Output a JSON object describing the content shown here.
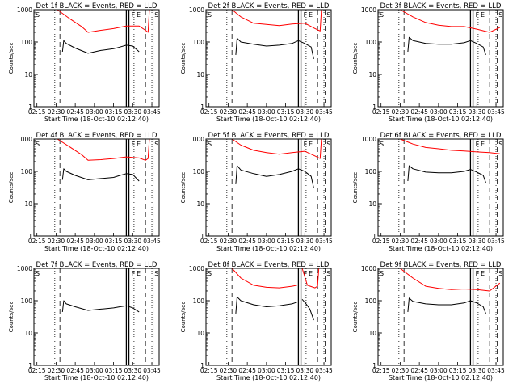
{
  "figure": {
    "xlabel": "Start Time (18-Oct-10 02:12:40)",
    "ylabel": "Counts/sec",
    "x_ticks": [
      "02:15",
      "02:30",
      "02:45",
      "03:00",
      "03:15",
      "03:30",
      "03:45"
    ],
    "y_ticks": [
      "1",
      "10",
      "100",
      "1000"
    ],
    "colors": {
      "events": "#000000",
      "lld": "#ff0000",
      "axes": "#000000"
    }
  },
  "chart_data": [
    {
      "type": "line",
      "title": "Det 1f BLACK = Events, RED = LLD",
      "xlabel": "Start Time (18-Oct-10 02:12:40)",
      "ylabel": "Counts/sec",
      "y_scale": "log",
      "ylim": [
        1,
        1000
      ],
      "xlim": [
        "02:12:40",
        "03:50:40"
      ],
      "corner_labels": [
        "S",
        "F",
        "E",
        "S"
      ],
      "markers": {
        "dotted": [
          "02:29",
          "03:31",
          "03:45"
        ],
        "dashed": [
          "02:33",
          "03:40",
          "03:46"
        ],
        "solid": [
          "03:25",
          "03:27"
        ]
      },
      "series": [
        {
          "name": "Events",
          "color": "#000000",
          "segments": [
            {
              "x": [
                "02:35",
                "02:36",
                "02:38",
                "02:45",
                "02:55",
                "03:05",
                "03:15",
                "03:20",
                "03:25",
                "03:30",
                "03:35"
              ],
              "y": [
                50,
                110,
                90,
                65,
                45,
                55,
                62,
                70,
                80,
                75,
                50
              ]
            }
          ]
        },
        {
          "name": "LLD",
          "color": "#ff0000",
          "segments": [
            {
              "x": [
                "02:31",
                "02:40",
                "02:50",
                "02:55",
                "03:05",
                "03:15",
                "03:25",
                "03:35",
                "03:40",
                "03:42",
                "03:43"
              ],
              "y": [
                1000,
                550,
                300,
                200,
                230,
                260,
                310,
                310,
                230,
                200,
                1000
              ]
            }
          ]
        }
      ]
    },
    {
      "type": "line",
      "title": "Det 2f BLACK = Events, RED = LLD",
      "xlabel": "Start Time (18-Oct-10 02:12:40)",
      "ylabel": "Counts/sec",
      "y_scale": "log",
      "ylim": [
        1,
        1000
      ],
      "xlim": [
        "02:12:40",
        "03:50:40"
      ],
      "corner_labels": [
        "S",
        "F",
        "E",
        "S"
      ],
      "markers": {
        "dotted": [
          "02:29",
          "03:31",
          "03:45"
        ],
        "dashed": [
          "02:33",
          "03:40",
          "03:46"
        ],
        "solid": [
          "03:25",
          "03:27"
        ]
      },
      "series": [
        {
          "name": "Events",
          "color": "#000000",
          "segments": [
            {
              "x": [
                "02:36",
                "02:37",
                "02:40",
                "02:50",
                "03:00",
                "03:10",
                "03:20",
                "03:25",
                "03:30",
                "03:35",
                "03:37"
              ],
              "y": [
                40,
                130,
                100,
                85,
                75,
                80,
                90,
                110,
                90,
                70,
                30
              ]
            }
          ]
        },
        {
          "name": "LLD",
          "color": "#ff0000",
          "segments": [
            {
              "x": [
                "02:33",
                "02:40",
                "02:50",
                "03:00",
                "03:10",
                "03:20",
                "03:30",
                "03:38",
                "03:42",
                "03:43"
              ],
              "y": [
                1000,
                600,
                380,
                350,
                320,
                360,
                380,
                260,
                220,
                1000
              ]
            }
          ]
        }
      ]
    },
    {
      "type": "line",
      "title": "Det 3f BLACK = Events, RED = LLD",
      "xlabel": "Start Time (18-Oct-10 02:12:40)",
      "ylabel": "Counts/sec",
      "y_scale": "log",
      "ylim": [
        1,
        1000
      ],
      "xlim": [
        "02:12:40",
        "03:50:40"
      ],
      "corner_labels": [
        "S",
        "F",
        "E",
        "S"
      ],
      "markers": {
        "dotted": [
          "02:29",
          "03:31",
          "03:45"
        ],
        "dashed": [
          "02:33",
          "03:40",
          "03:46"
        ],
        "solid": [
          "03:25",
          "03:27"
        ]
      },
      "series": [
        {
          "name": "Events",
          "color": "#000000",
          "segments": [
            {
              "x": [
                "02:36",
                "02:37",
                "02:40",
                "02:50",
                "03:00",
                "03:10",
                "03:20",
                "03:25",
                "03:30",
                "03:35",
                "03:37"
              ],
              "y": [
                50,
                140,
                110,
                90,
                85,
                85,
                95,
                110,
                90,
                70,
                40
              ]
            }
          ]
        },
        {
          "name": "LLD",
          "color": "#ff0000",
          "segments": [
            {
              "x": [
                "02:30",
                "02:40",
                "02:50",
                "03:00",
                "03:10",
                "03:20",
                "03:30",
                "03:40",
                "03:48"
              ],
              "y": [
                1000,
                600,
                400,
                330,
                300,
                300,
                250,
                200,
                280
              ]
            }
          ]
        }
      ]
    },
    {
      "type": "line",
      "title": "Det 4f BLACK = Events, RED = LLD",
      "xlabel": "Start Time (18-Oct-10 02:12:40)",
      "ylabel": "Counts/sec",
      "y_scale": "log",
      "ylim": [
        1,
        1000
      ],
      "xlim": [
        "02:12:40",
        "03:50:40"
      ],
      "corner_labels": [
        "S",
        "F",
        "E",
        "S"
      ],
      "markers": {
        "dotted": [
          "02:29",
          "03:31",
          "03:45"
        ],
        "dashed": [
          "02:33",
          "03:40",
          "03:46"
        ],
        "solid": [
          "03:25",
          "03:27"
        ]
      },
      "series": [
        {
          "name": "Events",
          "color": "#000000",
          "segments": [
            {
              "x": [
                "02:35",
                "02:36",
                "02:38",
                "02:45",
                "02:55",
                "03:05",
                "03:15",
                "03:20",
                "03:25",
                "03:30",
                "03:35"
              ],
              "y": [
                55,
                120,
                100,
                75,
                55,
                60,
                65,
                75,
                85,
                80,
                50
              ]
            }
          ]
        },
        {
          "name": "LLD",
          "color": "#ff0000",
          "segments": [
            {
              "x": [
                "02:31",
                "02:40",
                "02:50",
                "02:55",
                "03:05",
                "03:15",
                "03:25",
                "03:35",
                "03:40",
                "03:42",
                "03:43"
              ],
              "y": [
                1000,
                600,
                330,
                220,
                230,
                250,
                280,
                260,
                220,
                250,
                1000
              ]
            }
          ]
        }
      ]
    },
    {
      "type": "line",
      "title": "Det 5f BLACK = Events, RED = LLD",
      "xlabel": "Start Time (18-Oct-10 02:12:40)",
      "ylabel": "Counts/sec",
      "y_scale": "log",
      "ylim": [
        1,
        1000
      ],
      "xlim": [
        "02:12:40",
        "03:50:40"
      ],
      "corner_labels": [
        "S",
        "F",
        "E",
        "S"
      ],
      "markers": {
        "dotted": [
          "02:29",
          "03:31",
          "03:45"
        ],
        "dashed": [
          "02:33",
          "03:40",
          "03:46"
        ],
        "solid": [
          "03:25",
          "03:27"
        ]
      },
      "series": [
        {
          "name": "Events",
          "color": "#000000",
          "segments": [
            {
              "x": [
                "02:36",
                "02:37",
                "02:40",
                "02:50",
                "03:00",
                "03:10",
                "03:20",
                "03:25",
                "03:30",
                "03:35",
                "03:37"
              ],
              "y": [
                40,
                150,
                110,
                85,
                70,
                80,
                100,
                120,
                100,
                70,
                30
              ]
            }
          ]
        },
        {
          "name": "LLD",
          "color": "#ff0000",
          "segments": [
            {
              "x": [
                "02:33",
                "02:40",
                "02:50",
                "03:00",
                "03:10",
                "03:20",
                "03:30",
                "03:38",
                "03:42",
                "03:43"
              ],
              "y": [
                1000,
                650,
                450,
                380,
                340,
                380,
                420,
                300,
                250,
                1000
              ]
            }
          ]
        }
      ]
    },
    {
      "type": "line",
      "title": "Det 6f BLACK = Events, RED = LLD",
      "xlabel": "Start Time (18-Oct-10 02:12:40)",
      "ylabel": "Counts/sec",
      "y_scale": "log",
      "ylim": [
        1,
        1000
      ],
      "xlim": [
        "02:12:40",
        "03:50:40"
      ],
      "corner_labels": [
        "S",
        "F",
        "E",
        "S"
      ],
      "markers": {
        "dotted": [
          "02:29",
          "03:31",
          "03:45"
        ],
        "dashed": [
          "02:33",
          "03:40",
          "03:46"
        ],
        "solid": [
          "03:25",
          "03:27"
        ]
      },
      "series": [
        {
          "name": "Events",
          "color": "#000000",
          "segments": [
            {
              "x": [
                "02:36",
                "02:37",
                "02:40",
                "02:50",
                "03:00",
                "03:10",
                "03:20",
                "03:25",
                "03:30",
                "03:35",
                "03:37"
              ],
              "y": [
                50,
                150,
                120,
                95,
                90,
                90,
                100,
                115,
                95,
                75,
                45
              ]
            }
          ]
        },
        {
          "name": "LLD",
          "color": "#ff0000",
          "segments": [
            {
              "x": [
                "02:30",
                "02:40",
                "02:50",
                "03:00",
                "03:10",
                "03:20",
                "03:30",
                "03:40",
                "03:48"
              ],
              "y": [
                1000,
                700,
                550,
                500,
                450,
                430,
                400,
                380,
                350
              ]
            }
          ]
        }
      ]
    },
    {
      "type": "line",
      "title": "Det 7f BLACK = Events, RED = LLD",
      "xlabel": "Start Time (18-Oct-10 02:12:40)",
      "ylabel": "Counts/sec",
      "y_scale": "log",
      "ylim": [
        1,
        1000
      ],
      "xlim": [
        "02:12:40",
        "03:50:40"
      ],
      "corner_labels": [
        "S",
        "F",
        "E",
        "S"
      ],
      "markers": {
        "dotted": [
          "02:29",
          "03:31",
          "03:45"
        ],
        "dashed": [
          "02:33",
          "03:40",
          "03:46"
        ],
        "solid": [
          "03:25",
          "03:27"
        ]
      },
      "series": [
        {
          "name": "Events",
          "color": "#000000",
          "segments": [
            {
              "x": [
                "02:35",
                "02:36",
                "02:38",
                "02:45",
                "02:55",
                "03:05",
                "03:15",
                "03:20",
                "03:25",
                "03:30",
                "03:35"
              ],
              "y": [
                45,
                100,
                80,
                65,
                50,
                55,
                60,
                65,
                70,
                60,
                45
              ]
            }
          ]
        }
      ]
    },
    {
      "type": "line",
      "title": "Det 8f BLACK = Events, RED = LLD",
      "xlabel": "Start Time (18-Oct-10 02:12:40)",
      "ylabel": "Counts/sec",
      "y_scale": "log",
      "ylim": [
        1,
        1000
      ],
      "xlim": [
        "02:12:40",
        "03:50:40"
      ],
      "corner_labels": [
        "S",
        "F",
        "E",
        "S"
      ],
      "markers": {
        "dotted": [
          "02:29",
          "03:31",
          "03:45"
        ],
        "dashed": [
          "02:33",
          "03:40",
          "03:46"
        ],
        "solid": [
          "03:25",
          "03:27"
        ]
      },
      "series": [
        {
          "name": "Events",
          "color": "#000000",
          "segments": [
            {
              "x": [
                "02:36",
                "02:37",
                "02:40",
                "02:50",
                "03:00",
                "03:10",
                "03:20",
                "03:24"
              ],
              "y": [
                40,
                130,
                100,
                75,
                65,
                70,
                80,
                90
              ]
            },
            {
              "x": [
                "03:28",
                "03:31",
                "03:34",
                "03:37"
              ],
              "y": [
                110,
                80,
                55,
                25
              ]
            }
          ]
        },
        {
          "name": "LLD",
          "color": "#ff0000",
          "segments": [
            {
              "x": [
                "02:33",
                "02:40",
                "02:50",
                "03:00",
                "03:10",
                "03:20",
                "03:24"
              ],
              "y": [
                1000,
                500,
                300,
                260,
                250,
                280,
                300
              ]
            },
            {
              "x": [
                "03:28",
                "03:32",
                "03:38",
                "03:40",
                "03:41"
              ],
              "y": [
                1000,
                300,
                250,
                280,
                1000
              ]
            }
          ]
        }
      ]
    },
    {
      "type": "line",
      "title": "Det 9f BLACK = Events, RED = LLD",
      "xlabel": "Start Time (18-Oct-10 02:12:40)",
      "ylabel": "Counts/sec",
      "y_scale": "log",
      "ylim": [
        1,
        1000
      ],
      "xlim": [
        "02:12:40",
        "03:50:40"
      ],
      "corner_labels": [
        "S",
        "F",
        "E",
        "S"
      ],
      "markers": {
        "dotted": [
          "02:29",
          "03:31",
          "03:45"
        ],
        "dashed": [
          "02:33",
          "03:40",
          "03:46"
        ],
        "solid": [
          "03:25",
          "03:27"
        ]
      },
      "series": [
        {
          "name": "Events",
          "color": "#000000",
          "segments": [
            {
              "x": [
                "02:36",
                "02:37",
                "02:40",
                "02:50",
                "03:00",
                "03:10",
                "03:20",
                "03:25",
                "03:30",
                "03:35",
                "03:37"
              ],
              "y": [
                45,
                120,
                95,
                80,
                75,
                75,
                85,
                100,
                85,
                65,
                40
              ]
            }
          ]
        },
        {
          "name": "LLD",
          "color": "#ff0000",
          "segments": [
            {
              "x": [
                "02:30",
                "02:40",
                "02:50",
                "03:00",
                "03:10",
                "03:20",
                "03:30",
                "03:40",
                "03:48"
              ],
              "y": [
                1000,
                500,
                280,
                240,
                220,
                230,
                220,
                200,
                350
              ]
            }
          ]
        }
      ]
    }
  ]
}
